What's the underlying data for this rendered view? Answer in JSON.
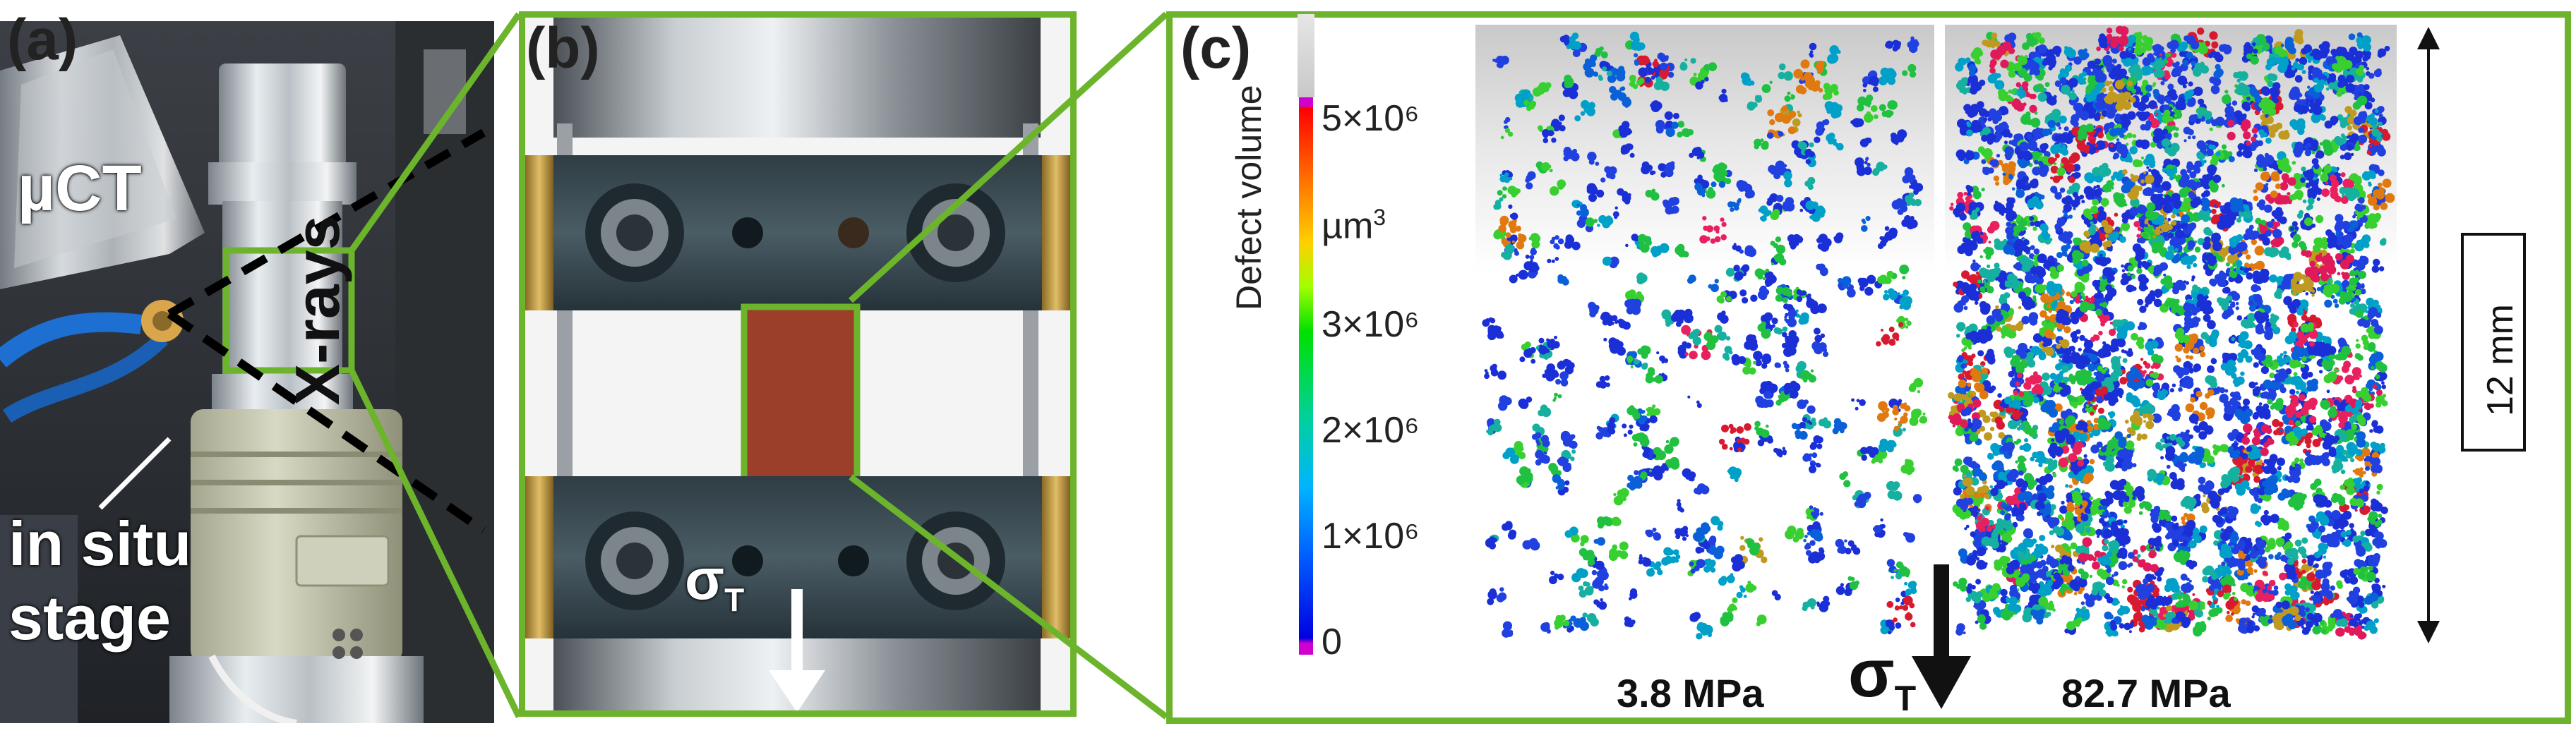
{
  "colors": {
    "frame_green": "#6bb42b",
    "background": "#ffffff",
    "dark_text": "#111111"
  },
  "panel_a": {
    "label": "(a)",
    "ucT_label": "µCT",
    "stage_line1": "in situ",
    "stage_line2": "stage",
    "xrays_label": "X-rays"
  },
  "panel_b": {
    "label": "(b)",
    "stress_symbol": "σ",
    "stress_sub": "T"
  },
  "panel_c": {
    "label": "(c)",
    "colorbar_title": "Defect volume",
    "colorbar_unit": "µm3",
    "colorbar_ticks": [
      "5×10⁶",
      "3×10⁶",
      "2×10⁶",
      "1×10⁶",
      "0"
    ],
    "unit_superscript": "3",
    "left_caption": "3.8 MPa",
    "right_caption": "82.7 MPa",
    "stress_symbol": "σ",
    "stress_sub": "T",
    "scale_label": "12 mm"
  }
}
